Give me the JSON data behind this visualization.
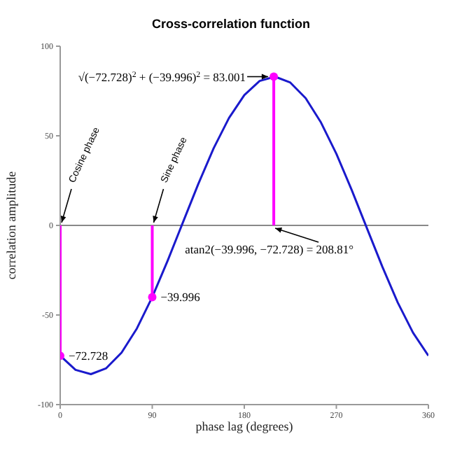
{
  "chart_data": {
    "type": "line",
    "title": "Cross-correlation function",
    "xlabel": "phase lag (degrees)",
    "ylabel": "correlation amplitude",
    "xlim": [
      0,
      360
    ],
    "xticks": [
      0,
      90,
      180,
      270,
      360
    ],
    "ylim": [
      -100,
      100
    ],
    "yticks": [
      -100,
      -50,
      0,
      50,
      100
    ],
    "series": [
      {
        "color": "#1a1acc",
        "x": [
          0,
          15,
          30,
          45,
          60,
          75,
          90,
          105,
          120,
          135,
          150,
          165,
          180,
          195,
          210,
          225,
          240,
          255,
          270,
          285,
          300,
          315,
          330,
          345,
          360
        ],
        "values": [
          -72.7,
          -80.6,
          -83,
          -79.7,
          -71,
          -57.5,
          -40,
          -19.8,
          1.7,
          23.1,
          43,
          59.9,
          72.7,
          80.6,
          83,
          79.7,
          71,
          57.4,
          40,
          19.8,
          -1.7,
          -23.1,
          -43,
          -59.9,
          -72.7
        ]
      },
      {
        "type": "lollipop",
        "color": "#ff00ff",
        "x": [
          0,
          90,
          208.81
        ],
        "values": [
          -72.728,
          -39.996,
          83.001
        ],
        "value_labels": [
          "−72.728",
          "−39.996",
          null
        ]
      }
    ],
    "ref_lines": [
      {
        "axis": "y",
        "value": 0,
        "color": "#888888"
      }
    ],
    "annotations": [
      {
        "text": "Cosine phase",
        "x": 0,
        "y": 0
      },
      {
        "text": "Sine phase",
        "x": 90,
        "y": 0
      },
      {
        "text": "√(−72.728)$^{2}$ + (−39.996)$^{2}$ = 83.001",
        "x": 208.81,
        "y": 83.001
      },
      {
        "text": "atan2(−39.996, −72.728) = 208.81°",
        "x": 208.81,
        "y": 0
      }
    ]
  }
}
